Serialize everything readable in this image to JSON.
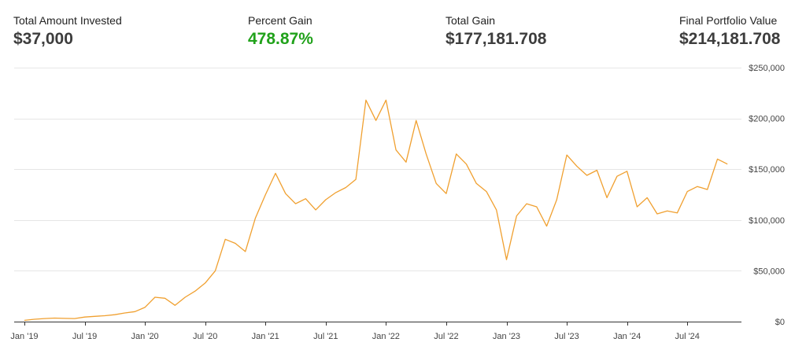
{
  "summary": [
    {
      "label": "Total Amount Invested",
      "value": "$37,000"
    },
    {
      "label": "Percent Gain",
      "value": "478.87%",
      "color": "#21a21b"
    },
    {
      "label": "Total Gain",
      "value": "$177,181.708"
    },
    {
      "label": "Final Portfolio Value",
      "value": "$214,181.708"
    }
  ],
  "colors": {
    "line": "#f0a030",
    "grid": "#e6e6e6",
    "axis": "#333333",
    "text": "#444444"
  },
  "chart_data": {
    "type": "line",
    "title": "",
    "xlabel": "",
    "ylabel": "",
    "ylim": [
      0,
      250000
    ],
    "y_ticks": [
      0,
      50000,
      100000,
      150000,
      200000,
      250000
    ],
    "y_tick_labels": [
      "$0",
      "$50,000",
      "$100,000",
      "$150,000",
      "$200,000",
      "$250,000"
    ],
    "x_range": [
      "2019-01",
      "2024-12"
    ],
    "x_tick_months": [
      "2019-01",
      "2019-07",
      "2020-01",
      "2020-07",
      "2021-01",
      "2021-07",
      "2022-01",
      "2022-07",
      "2023-01",
      "2023-07",
      "2024-01",
      "2024-07"
    ],
    "x_tick_labels": [
      "Jan '19",
      "Jul '19",
      "Jan '20",
      "Jul '20",
      "Jan '21",
      "Jul '21",
      "Jan '22",
      "Jul '22",
      "Jan '23",
      "Jul '23",
      "Jan '24",
      "Jul '24"
    ],
    "grid": true,
    "series": [
      {
        "months": [
          "2019-01",
          "2019-02",
          "2019-03",
          "2019-04",
          "2019-05",
          "2019-06",
          "2019-07",
          "2019-08",
          "2019-09",
          "2019-10",
          "2019-11",
          "2019-12",
          "2020-01",
          "2020-02",
          "2020-03",
          "2020-04",
          "2020-05",
          "2020-06",
          "2020-07",
          "2020-08",
          "2020-09",
          "2020-10",
          "2020-11",
          "2020-12",
          "2021-01",
          "2021-02",
          "2021-03",
          "2021-04",
          "2021-05",
          "2021-06",
          "2021-07",
          "2021-08",
          "2021-09",
          "2021-10",
          "2021-11",
          "2021-12",
          "2022-01",
          "2022-02",
          "2022-03",
          "2022-04",
          "2022-05",
          "2022-06",
          "2022-07",
          "2022-08",
          "2022-09",
          "2022-10",
          "2022-11",
          "2022-12",
          "2023-01",
          "2023-02",
          "2023-03",
          "2023-04",
          "2023-05",
          "2023-06",
          "2023-07",
          "2023-08",
          "2023-09",
          "2023-10",
          "2023-11",
          "2023-12",
          "2024-01",
          "2024-02",
          "2024-03",
          "2024-04",
          "2024-05",
          "2024-06",
          "2024-07",
          "2024-08",
          "2024-09",
          "2024-10",
          "2024-11"
        ],
        "values": [
          1200,
          2300,
          3000,
          3500,
          3200,
          3000,
          4500,
          5200,
          5800,
          6800,
          8500,
          9800,
          14000,
          24000,
          23000,
          16000,
          24000,
          30000,
          38000,
          50000,
          81000,
          77000,
          69000,
          102000,
          125000,
          146000,
          126000,
          116000,
          121000,
          110000,
          120000,
          127000,
          132000,
          140000,
          218000,
          198000,
          218000,
          169000,
          157000,
          198000,
          165000,
          136000,
          126000,
          165000,
          155000,
          136000,
          128000,
          110000,
          61000,
          104000,
          116000,
          113000,
          94000,
          120000,
          164000,
          153000,
          144000,
          149000,
          122000,
          143000,
          148000,
          113000,
          122000,
          106000,
          109000,
          107000,
          128000,
          133000,
          130000,
          160000,
          155000
        ]
      }
    ]
  }
}
